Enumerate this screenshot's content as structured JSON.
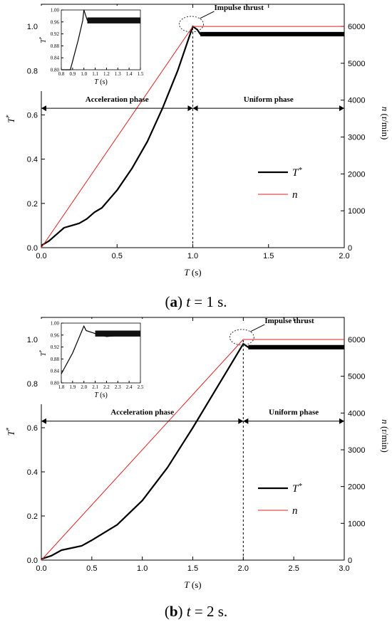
{
  "chart_data": [
    {
      "type": "line",
      "panel": "a",
      "caption_letter": "a",
      "caption_rest": "t = 1 s.",
      "xlabel": "T (s)",
      "ylabel_left": "T*",
      "ylabel_right": "n (r/min)",
      "xlim": [
        0,
        2.0
      ],
      "xticks": [
        "0.0",
        "0.5",
        "1.0",
        "1.5",
        "2.0"
      ],
      "ylim_left": [
        0,
        1.1
      ],
      "yticks_left": [
        "0.0",
        "0.2",
        "0.4",
        "0.6",
        "0.8",
        "1.0"
      ],
      "ylim_right": [
        0,
        6600
      ],
      "yticks_right": [
        "0",
        "1000",
        "2000",
        "3000",
        "4000",
        "5000",
        "6000"
      ],
      "annotations": {
        "impulse": "Impulse thrust",
        "accel": "Acceleration phase",
        "uniform": "Uniform phase"
      },
      "legend": [
        {
          "name": "T*",
          "color": "#000000"
        },
        {
          "name": "n",
          "color": "#e02020"
        }
      ],
      "series": [
        {
          "name": "T*",
          "axis": "left",
          "color": "#000000",
          "x": [
            0,
            0.05,
            0.1,
            0.15,
            0.2,
            0.25,
            0.3,
            0.35,
            0.4,
            0.5,
            0.6,
            0.7,
            0.8,
            0.9,
            1.0,
            1.03,
            1.05,
            1.1,
            1.5,
            2.0
          ],
          "y": [
            0.01,
            0.03,
            0.06,
            0.09,
            0.1,
            0.11,
            0.13,
            0.16,
            0.18,
            0.26,
            0.36,
            0.48,
            0.63,
            0.8,
            1.0,
            0.985,
            0.965,
            0.965,
            0.965,
            0.965
          ]
        },
        {
          "name": "n",
          "axis": "right",
          "color": "#e02020",
          "x": [
            0,
            1.0,
            2.0
          ],
          "y": [
            0,
            6000,
            6000
          ]
        }
      ],
      "inset": {
        "xlabel": "T (s)",
        "ylabel": "T*",
        "xlim": [
          0.8,
          1.5
        ],
        "xticks": [
          "0.8",
          "0.9",
          "1.0",
          "1.1",
          "1.2",
          "1.3",
          "1.4",
          "1.5"
        ],
        "ylim": [
          0.8,
          1.0
        ],
        "yticks": [
          "0.80",
          "0.84",
          "0.88",
          "0.92",
          "0.96",
          "1.00"
        ],
        "series": {
          "x": [
            0.8,
            0.88,
            0.95,
            0.99,
            1.0,
            1.03,
            1.05,
            1.5
          ],
          "y": [
            0.72,
            0.8,
            0.9,
            0.965,
            1.0,
            0.965,
            0.962,
            0.962
          ]
        }
      }
    },
    {
      "type": "line",
      "panel": "b",
      "caption_letter": "b",
      "caption_rest": "t = 2 s.",
      "xlabel": "T (s)",
      "ylabel_left": "T*",
      "ylabel_right": "n (r/min)",
      "xlim": [
        0,
        3.0
      ],
      "xticks": [
        "0.0",
        "0.5",
        "1.0",
        "1.5",
        "2.0",
        "2.5",
        "3.0"
      ],
      "ylim_left": [
        0,
        1.1
      ],
      "yticks_left": [
        "0.0",
        "0.2",
        "0.4",
        "0.6",
        "0.8",
        "1.0"
      ],
      "ylim_right": [
        0,
        6600
      ],
      "yticks_right": [
        "0",
        "1000",
        "2000",
        "3000",
        "4000",
        "5000",
        "6000"
      ],
      "annotations": {
        "impulse": "Impulse thrust",
        "accel": "Acceleration phase",
        "uniform": "Uniform phase"
      },
      "legend": [
        {
          "name": "T*",
          "color": "#000000"
        },
        {
          "name": "n",
          "color": "#e02020"
        }
      ],
      "series": [
        {
          "name": "T*",
          "axis": "left",
          "color": "#000000",
          "x": [
            0,
            0.1,
            0.2,
            0.3,
            0.4,
            0.5,
            0.75,
            1.0,
            1.25,
            1.5,
            1.75,
            2.0,
            2.05,
            2.1,
            2.5,
            3.0
          ],
          "y": [
            0.005,
            0.02,
            0.045,
            0.055,
            0.065,
            0.09,
            0.16,
            0.27,
            0.42,
            0.6,
            0.79,
            0.98,
            0.965,
            0.965,
            0.965,
            0.965
          ]
        },
        {
          "name": "n",
          "axis": "right",
          "color": "#e02020",
          "x": [
            0,
            2.0,
            3.0
          ],
          "y": [
            0,
            6000,
            6000
          ]
        }
      ],
      "inset": {
        "xlabel": "T (s)",
        "ylabel": "T*",
        "xlim": [
          1.8,
          2.5
        ],
        "xticks": [
          "1.8",
          "1.9",
          "2.0",
          "2.1",
          "2.2",
          "2.3",
          "2.4",
          "2.5"
        ],
        "ylim": [
          0.8,
          1.0
        ],
        "yticks": [
          "0.80",
          "0.84",
          "0.88",
          "0.92",
          "0.96",
          "1.00"
        ],
        "series": {
          "x": [
            1.8,
            1.9,
            2.0,
            2.02,
            2.1,
            2.2,
            2.5
          ],
          "y": [
            0.83,
            0.9,
            0.99,
            0.975,
            0.965,
            0.955,
            0.965
          ]
        }
      }
    }
  ]
}
